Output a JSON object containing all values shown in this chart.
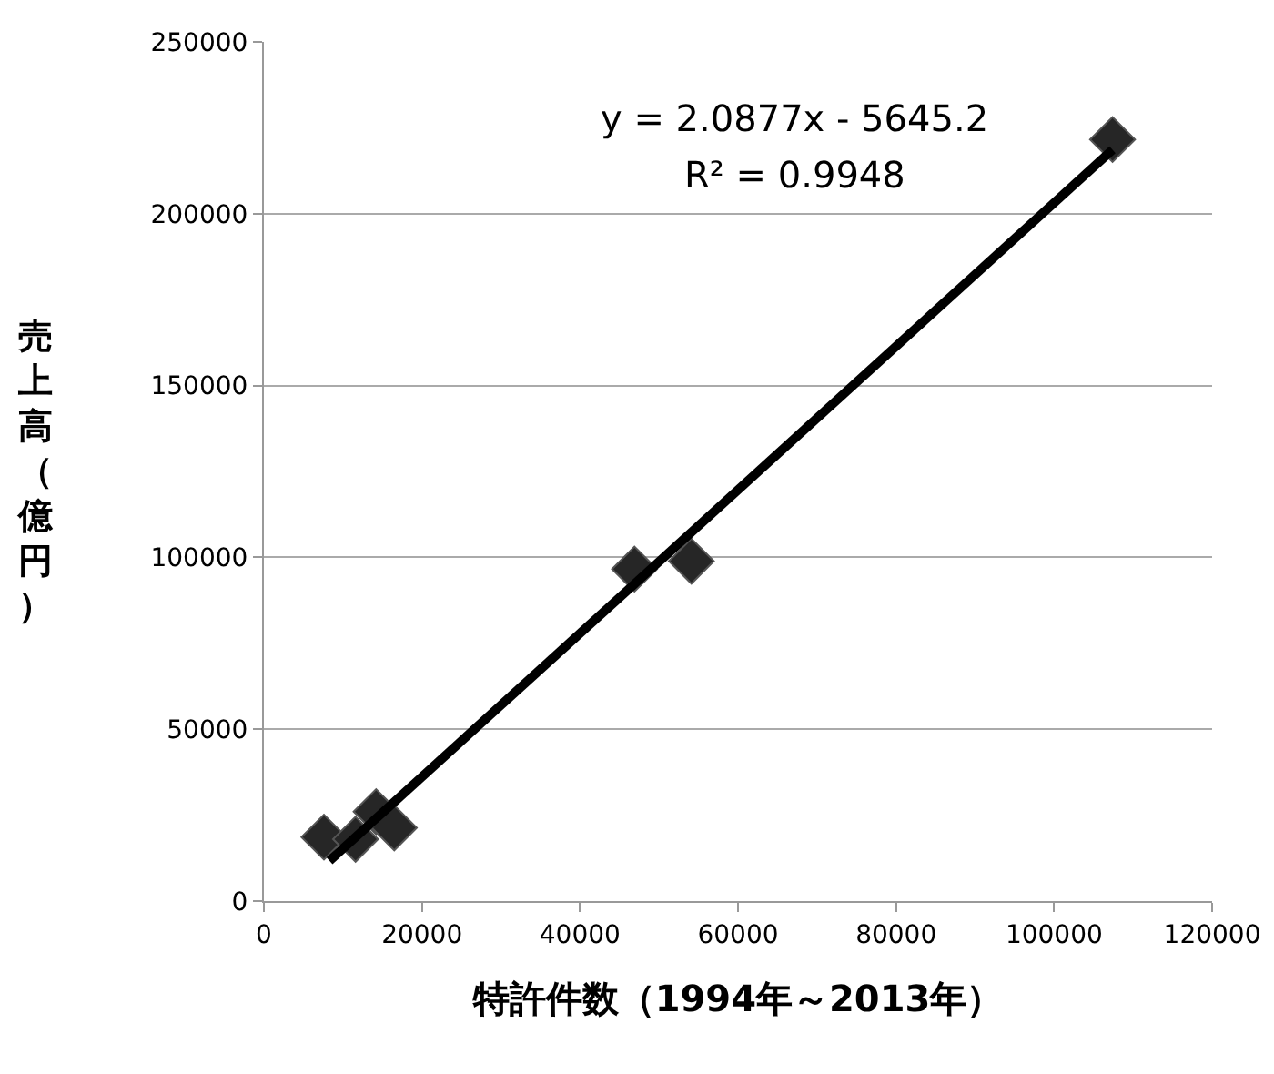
{
  "chart_data": {
    "type": "scatter",
    "xlabel": "特許件数（1994年～2013年）",
    "ylabel": "売上高（億円）",
    "xlim": [
      0,
      120000
    ],
    "xticks": [
      0,
      20000,
      40000,
      60000,
      80000,
      100000,
      120000
    ],
    "ylim": [
      0,
      250000
    ],
    "yticks": [
      0,
      50000,
      100000,
      150000,
      200000,
      250000
    ],
    "grid": "y",
    "legend": false,
    "marker": "diamond",
    "annotations": [
      "y = 2.0877x - 5645.2",
      "R² = 0.9948"
    ],
    "series": [
      {
        "color": "#262626",
        "x": [
          7600,
          11600,
          14200,
          16500,
          46900,
          54100,
          107400
        ],
        "values": [
          18600,
          18000,
          26000,
          21300,
          96600,
          98900,
          221600
        ]
      },
      {
        "type": "line",
        "color": "#000000",
        "line_style": "solid",
        "marker": "none",
        "x": [
          8300,
          107400
        ],
        "values": [
          11700,
          218600
        ]
      }
    ]
  }
}
